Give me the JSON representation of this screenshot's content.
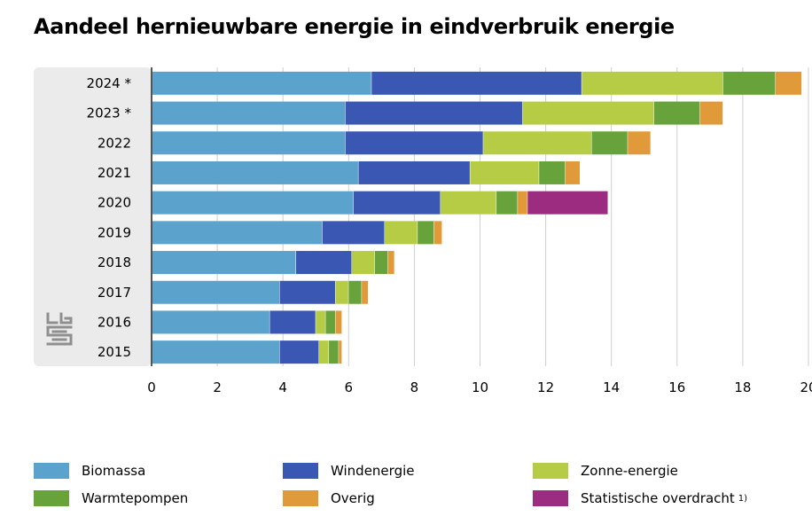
{
  "title": "Aandeel hernieuwbare energie in eindverbruik energie",
  "colors": {
    "biomassa": "#5ba3cd",
    "windenergie": "#3a57b3",
    "zonne_energie": "#b6cc44",
    "warmtepompen": "#67a33a",
    "overig": "#e19a3a",
    "statistische_overdracht": "#9b2c7f",
    "panel": "#ebebeb",
    "grid": "#cfcfcf",
    "axis": "#555555"
  },
  "legend": {
    "items": [
      {
        "key": "biomassa",
        "label": "Biomassa"
      },
      {
        "key": "windenergie",
        "label": "Windenergie"
      },
      {
        "key": "zonne_energie",
        "label": "Zonne-energie"
      },
      {
        "key": "warmtepompen",
        "label": "Warmtepompen"
      },
      {
        "key": "overig",
        "label": "Overig"
      },
      {
        "key": "statistische_overdracht",
        "label": "Statistische overdracht",
        "note": "1)"
      }
    ]
  },
  "logo_icon": "cbs-logo-icon",
  "chart_data": {
    "type": "bar",
    "orientation": "horizontal",
    "stacked": true,
    "title": "Aandeel hernieuwbare energie in eindverbruik energie",
    "categories": [
      "2024 *",
      "2023 *",
      "2022",
      "2021",
      "2020",
      "2019",
      "2018",
      "2017",
      "2016",
      "2015"
    ],
    "xlim": [
      0,
      20
    ],
    "xticks": [
      "0",
      "2",
      "4",
      "6",
      "8",
      "10",
      "12",
      "14",
      "16",
      "18",
      "20"
    ],
    "grid": true,
    "legend_position": "bottom",
    "series": [
      {
        "key": "biomassa",
        "name": "Biomassa",
        "values": [
          6.7,
          5.9,
          5.9,
          6.3,
          6.15,
          5.2,
          4.4,
          3.9,
          3.6,
          3.9
        ]
      },
      {
        "key": "windenergie",
        "name": "Windenergie",
        "values": [
          6.4,
          5.4,
          4.2,
          3.4,
          2.65,
          1.9,
          1.7,
          1.7,
          1.4,
          1.2
        ]
      },
      {
        "key": "zonne_energie",
        "name": "Zonne-energie",
        "values": [
          4.3,
          4.0,
          3.3,
          2.1,
          1.7,
          1.0,
          0.7,
          0.4,
          0.3,
          0.3
        ]
      },
      {
        "key": "warmtepompen",
        "name": "Warmtepompen",
        "values": [
          1.6,
          1.4,
          1.1,
          0.8,
          0.65,
          0.5,
          0.4,
          0.4,
          0.3,
          0.3
        ]
      },
      {
        "key": "overig",
        "name": "Overig",
        "values": [
          0.8,
          0.7,
          0.7,
          0.45,
          0.3,
          0.25,
          0.2,
          0.2,
          0.2,
          0.1
        ]
      },
      {
        "key": "statistische_overdracht",
        "name": "Statistische overdracht",
        "values": [
          0,
          0,
          0,
          0,
          2.45,
          0,
          0,
          0,
          0,
          0
        ]
      }
    ]
  }
}
